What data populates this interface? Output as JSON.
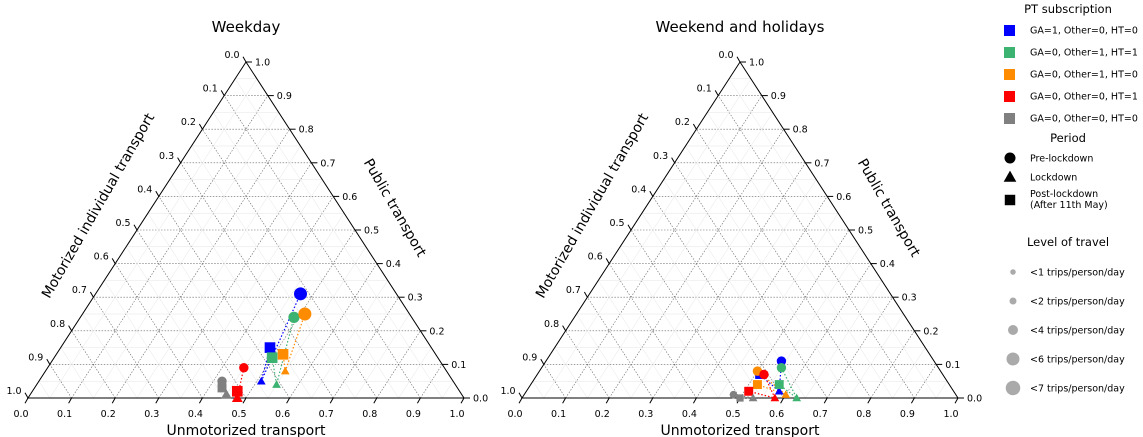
{
  "chart_data": [
    {
      "type": "scatter",
      "subtype": "ternary",
      "title": "Weekday",
      "axes": {
        "bottom": "Unmotorized transport",
        "right": "Public transport",
        "left": "Motorized individual transport"
      },
      "ticks": [
        "0.0",
        "0.1",
        "0.2",
        "0.3",
        "0.4",
        "0.5",
        "0.6",
        "0.7",
        "0.8",
        "0.9",
        "1.0"
      ],
      "grid": true,
      "series": [
        {
          "group": "GA=1, Other=0, HT=0",
          "color": "#0000ff",
          "points": [
            {
              "period": "Pre-lockdown",
              "unmotorized": 0.47,
              "public": 0.31,
              "size": 5
            },
            {
              "period": "Lockdown",
              "unmotorized": 0.51,
              "public": 0.05,
              "size": 2
            },
            {
              "period": "Post-lockdown",
              "unmotorized": 0.48,
              "public": 0.15,
              "size": 4
            }
          ]
        },
        {
          "group": "GA=0, Other=1, HT=1",
          "color": "#3cb371",
          "points": [
            {
              "period": "Pre-lockdown",
              "unmotorized": 0.49,
              "public": 0.24,
              "size": 4
            },
            {
              "period": "Lockdown",
              "unmotorized": 0.55,
              "public": 0.04,
              "size": 2
            },
            {
              "period": "Post-lockdown",
              "unmotorized": 0.5,
              "public": 0.12,
              "size": 4
            }
          ]
        },
        {
          "group": "GA=0, Other=1, HT=0",
          "color": "#ff8c00",
          "points": [
            {
              "period": "Pre-lockdown",
              "unmotorized": 0.51,
              "public": 0.25,
              "size": 5
            },
            {
              "period": "Lockdown",
              "unmotorized": 0.55,
              "public": 0.08,
              "size": 2
            },
            {
              "period": "Post-lockdown",
              "unmotorized": 0.52,
              "public": 0.13,
              "size": 4
            }
          ]
        },
        {
          "group": "GA=0, Other=0, HT=1",
          "color": "#ff0000",
          "points": [
            {
              "period": "Pre-lockdown",
              "unmotorized": 0.45,
              "public": 0.09,
              "size": 3
            },
            {
              "period": "Lockdown",
              "unmotorized": 0.48,
              "public": 0.0,
              "size": 3
            },
            {
              "period": "Post-lockdown",
              "unmotorized": 0.47,
              "public": 0.02,
              "size": 4
            }
          ]
        },
        {
          "group": "GA=0, Other=0, HT=0",
          "color": "#808080",
          "points": [
            {
              "period": "Pre-lockdown",
              "unmotorized": 0.42,
              "public": 0.05,
              "size": 3
            },
            {
              "period": "Lockdown",
              "unmotorized": 0.45,
              "public": 0.01,
              "size": 3
            },
            {
              "period": "Post-lockdown",
              "unmotorized": 0.43,
              "public": 0.03,
              "size": 3
            }
          ]
        }
      ]
    },
    {
      "type": "scatter",
      "subtype": "ternary",
      "title": "Weekend and holidays",
      "axes": {
        "bottom": "Unmotorized transport",
        "right": "Public transport",
        "left": "Motorized individual transport"
      },
      "ticks": [
        "0.0",
        "0.1",
        "0.2",
        "0.3",
        "0.4",
        "0.5",
        "0.6",
        "0.7",
        "0.8",
        "0.9",
        "1.0"
      ],
      "grid": true,
      "series": [
        {
          "group": "GA=1, Other=0, HT=0",
          "color": "#0000ff",
          "points": [
            {
              "period": "Pre-lockdown",
              "unmotorized": 0.54,
              "public": 0.11,
              "size": 3
            },
            {
              "period": "Lockdown",
              "unmotorized": 0.58,
              "public": 0.02,
              "size": 2
            },
            {
              "period": "Post-lockdown",
              "unmotorized": 0.51,
              "public": 0.07,
              "size": 3
            }
          ]
        },
        {
          "group": "GA=0, Other=1, HT=1",
          "color": "#3cb371",
          "points": [
            {
              "period": "Pre-lockdown",
              "unmotorized": 0.55,
              "public": 0.09,
              "size": 3
            },
            {
              "period": "Lockdown",
              "unmotorized": 0.63,
              "public": 0.0,
              "size": 2
            },
            {
              "period": "Post-lockdown",
              "unmotorized": 0.57,
              "public": 0.04,
              "size": 3
            }
          ]
        },
        {
          "group": "GA=0, Other=1, HT=0",
          "color": "#ff8c00",
          "points": [
            {
              "period": "Pre-lockdown",
              "unmotorized": 0.5,
              "public": 0.08,
              "size": 3
            },
            {
              "period": "Lockdown",
              "unmotorized": 0.6,
              "public": 0.01,
              "size": 2
            },
            {
              "period": "Post-lockdown",
              "unmotorized": 0.52,
              "public": 0.04,
              "size": 3
            }
          ]
        },
        {
          "group": "GA=0, Other=0, HT=1",
          "color": "#ff0000",
          "points": [
            {
              "period": "Pre-lockdown",
              "unmotorized": 0.52,
              "public": 0.07,
              "size": 3
            },
            {
              "period": "Lockdown",
              "unmotorized": 0.58,
              "public": 0.0,
              "size": 2
            },
            {
              "period": "Post-lockdown",
              "unmotorized": 0.51,
              "public": 0.02,
              "size": 3
            }
          ]
        },
        {
          "group": "GA=0, Other=0, HT=0",
          "color": "#808080",
          "points": [
            {
              "period": "Pre-lockdown",
              "unmotorized": 0.48,
              "public": 0.01,
              "size": 2
            },
            {
              "period": "Lockdown",
              "unmotorized": 0.53,
              "public": 0.0,
              "size": 2
            },
            {
              "period": "Post-lockdown",
              "unmotorized": 0.5,
              "public": 0.0,
              "size": 2
            }
          ]
        }
      ]
    }
  ],
  "legend": {
    "placement": "right",
    "subscription_title": "PT subscription",
    "subscription": [
      {
        "label": "GA=1, Other=0, HT=0",
        "color": "#0000ff"
      },
      {
        "label": "GA=0, Other=1, HT=1",
        "color": "#3cb371"
      },
      {
        "label": "GA=0, Other=1, HT=0",
        "color": "#ff8c00"
      },
      {
        "label": "GA=0, Other=0, HT=1",
        "color": "#ff0000"
      },
      {
        "label": "GA=0, Other=0, HT=0",
        "color": "#808080"
      }
    ],
    "period_title": "Period",
    "period": [
      {
        "label": "Pre-lockdown",
        "marker": "circle"
      },
      {
        "label": "Lockdown",
        "marker": "triangle"
      },
      {
        "label": "Post-lockdown",
        "label2": "(After 11th May)",
        "marker": "square"
      }
    ],
    "level_title": "Level of travel",
    "level": [
      {
        "label": "<1 trips/person/day",
        "size": 1
      },
      {
        "label": "<2 trips/person/day",
        "size": 2
      },
      {
        "label": "<4 trips/person/day",
        "size": 4
      },
      {
        "label": "<6 trips/person/day",
        "size": 6
      },
      {
        "label": "<7 trips/person/day",
        "size": 7
      }
    ]
  }
}
